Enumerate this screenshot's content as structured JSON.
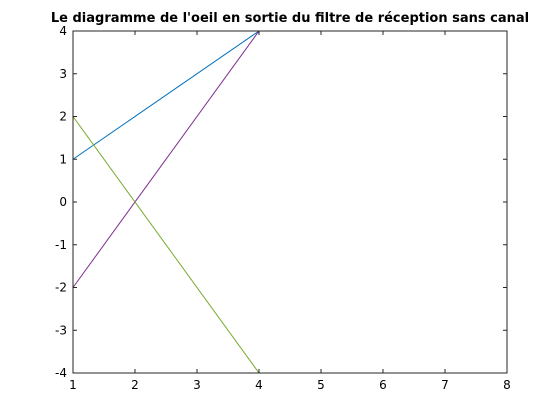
{
  "chart_data": {
    "type": "line",
    "title": "Le diagramme de l'oeil en sortie du filtre de réception sans canal",
    "xlabel": "",
    "ylabel": "",
    "xlim": [
      1,
      8
    ],
    "ylim": [
      -4,
      4
    ],
    "xticks": [
      1,
      2,
      3,
      4,
      5,
      6,
      7,
      8
    ],
    "yticks": [
      -4,
      -3,
      -2,
      -1,
      0,
      1,
      2,
      3,
      4
    ],
    "grid": false,
    "series": [
      {
        "color": "#0072BD",
        "x": [
          1,
          4,
          8
        ],
        "y": [
          1,
          4,
          4
        ]
      },
      {
        "color": "#7E2F8E",
        "x": [
          1,
          4,
          8
        ],
        "y": [
          -2,
          4,
          4
        ]
      },
      {
        "color": "#77AC30",
        "x": [
          1,
          4,
          8
        ],
        "y": [
          2,
          -4,
          -4
        ]
      },
      {
        "color": "#EDB120",
        "x": [
          1,
          4,
          8
        ],
        "y": [
          -4,
          -4,
          -4
        ]
      }
    ]
  }
}
